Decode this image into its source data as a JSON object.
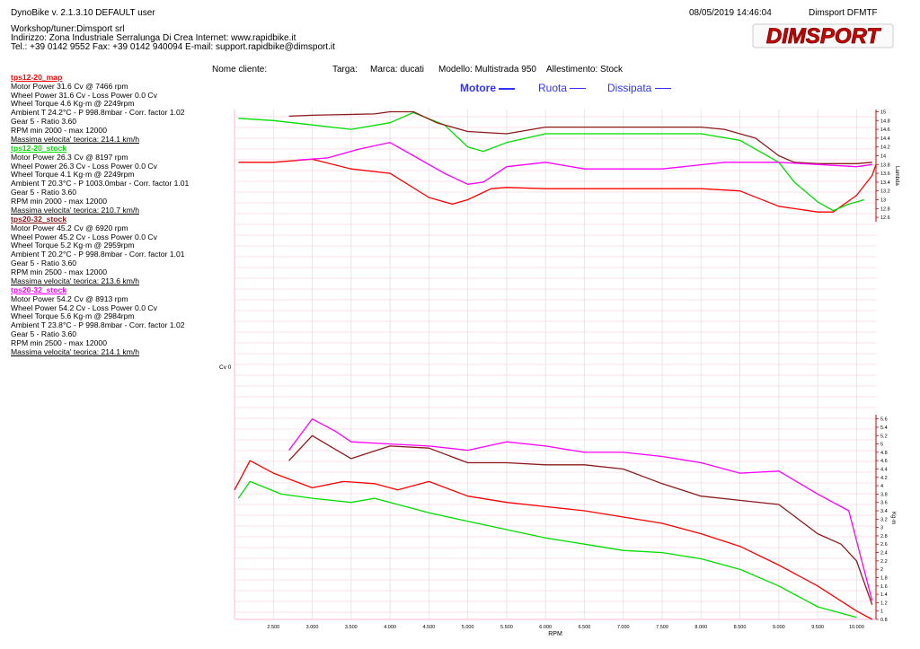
{
  "header": {
    "app_version": "DynoBike v. 2.1.3.10   DEFAULT user",
    "datetime": "08/05/2019 14:46:04",
    "station": "Dimsport DFMTF",
    "workshop": "Workshop/tuner:Dimsport srl",
    "address": "Indirizzo: Zona Industriale Serralunga Di Crea Internet: www.rapidbike.it",
    "phone": "Tel.: +39 0142 9552 Fax: +39 0142 940094 E-mail: support.rapidbike@dimsport.it",
    "logo_text": "DIMSPORT"
  },
  "runs": [
    {
      "title": "tps12-20_map",
      "color": "#ff0000",
      "lines": [
        "Motor Power 31.6 Cv  @ 7466 rpm",
        "Wheel Power 31.6 Cv  - Loss Power 0.0 Cv",
        "Wheel Torque 4.6 Kg·m  @ 2249rpm",
        "Ambient T 24.2°C - P 998.8mbar - Corr. factor 1.02",
        "Gear 5 - Ratio 3.60",
        "RPM min 2000 - max 12000"
      ],
      "max_speed": "Massima velocita' teorica: 214.1 km/h"
    },
    {
      "title": "tps12-20_stock",
      "color": "#00dd00",
      "lines": [
        "Motor Power 26.3 Cv  @ 8197 rpm",
        "Wheel Power 26.3 Cv  - Loss Power 0.0 Cv",
        "Wheel Torque 4.1 Kg·m  @ 2249rpm",
        "Ambient T 20.3°C - P 1003.0mbar - Corr. factor 1.01",
        "Gear 5 - Ratio 3.60",
        "RPM min 2000 - max 12000"
      ],
      "max_speed": "Massima velocita' teorica: 210.7 km/h"
    },
    {
      "title": "tps20-32_stock",
      "color": "#8b1a1a",
      "lines": [
        "Motor Power 45.2 Cv  @ 6920 rpm",
        "Wheel Power 45.2 Cv  - Loss Power 0.0 Cv",
        "Wheel Torque 5.2 Kg·m  @ 2959rpm",
        "Ambient T 20.2°C - P 998.8mbar - Corr. factor 1.01",
        "Gear 5 - Ratio 3.60",
        "RPM min 2500 - max 12000"
      ],
      "max_speed": "Massima velocita' teorica: 213.6 km/h"
    },
    {
      "title": "tps20-32_stock",
      "color": "#ff00ff",
      "lines": [
        "Motor Power 54.2 Cv  @ 8913 rpm",
        "Wheel Power 54.2 Cv  - Loss Power 0.0 Cv",
        "Wheel Torque 5.6 Kg·m  @ 2984rpm",
        "Ambient T 23.8°C - P 998.8mbar - Corr. factor 1.02",
        "Gear 5 - Ratio 3.60",
        "RPM min 2500 - max 12000"
      ],
      "max_speed": "Massima velocita' teorica: 214.1 km/h"
    }
  ],
  "meta": {
    "cliente": "Nome cliente:",
    "targa": "Targa:",
    "marca": "Marca: ducati",
    "modello": "Modello: Multistrada 950",
    "allestimento": "Allestimento: Stock"
  },
  "legend": {
    "motore": "Motore",
    "ruota": "Ruota",
    "dissipata": "Dissipata",
    "color": "#3333ff"
  },
  "chart_data": {
    "type": "line",
    "xlabel": "RPM",
    "x_range": [
      2000,
      10250
    ],
    "x_ticks": [
      "2.500",
      "3.000",
      "3.500",
      "4.000",
      "4.500",
      "5.000",
      "5.500",
      "6.000",
      "6.500",
      "7.000",
      "7.500",
      "8.000",
      "8.500",
      "9.000",
      "9.500",
      "10.000"
    ],
    "power_axis": {
      "label": "Cv",
      "ticks": [
        "0"
      ]
    },
    "lambda_axis": {
      "label": "Lambda",
      "range": [
        12.5,
        15.05
      ],
      "ticks": [
        "12.6",
        "12.8",
        "13",
        "13.2",
        "13.4",
        "13.6",
        "13.8",
        "14",
        "14.2",
        "14.4",
        "14.6",
        "14.8",
        "15"
      ]
    },
    "torque_axis": {
      "label": "Kg·m",
      "range": [
        0.8,
        5.7
      ],
      "ticks": [
        "0.8",
        "1",
        "1.2",
        "1.4",
        "1.6",
        "1.8",
        "2",
        "2.2",
        "2.4",
        "2.6",
        "2.8",
        "3",
        "3.2",
        "3.4",
        "3.6",
        "3.8",
        "4",
        "4.2",
        "4.4",
        "4.6",
        "4.8",
        "5",
        "5.2",
        "5.4",
        "5.6"
      ]
    },
    "lambda_series": [
      {
        "name": "tps12-20_map",
        "color": "#ff0000",
        "points": [
          [
            2050,
            13.85
          ],
          [
            2500,
            13.85
          ],
          [
            3000,
            13.92
          ],
          [
            3500,
            13.7
          ],
          [
            4000,
            13.6
          ],
          [
            4500,
            13.05
          ],
          [
            4800,
            12.9
          ],
          [
            5000,
            13.0
          ],
          [
            5300,
            13.25
          ],
          [
            5500,
            13.28
          ],
          [
            6000,
            13.25
          ],
          [
            7000,
            13.25
          ],
          [
            8000,
            13.25
          ],
          [
            8500,
            13.2
          ],
          [
            9000,
            12.85
          ],
          [
            9500,
            12.72
          ],
          [
            9700,
            12.72
          ],
          [
            10000,
            13.1
          ],
          [
            10200,
            13.55
          ],
          [
            10250,
            13.8
          ]
        ]
      },
      {
        "name": "tps12-20_stock",
        "color": "#00dd00",
        "points": [
          [
            2050,
            14.85
          ],
          [
            2500,
            14.8
          ],
          [
            3000,
            14.7
          ],
          [
            3500,
            14.6
          ],
          [
            4000,
            14.75
          ],
          [
            4300,
            14.98
          ],
          [
            4700,
            14.7
          ],
          [
            5000,
            14.2
          ],
          [
            5200,
            14.1
          ],
          [
            5500,
            14.3
          ],
          [
            6000,
            14.5
          ],
          [
            7000,
            14.5
          ],
          [
            8000,
            14.5
          ],
          [
            8500,
            14.35
          ],
          [
            9000,
            13.85
          ],
          [
            9200,
            13.4
          ],
          [
            9500,
            12.95
          ],
          [
            9700,
            12.75
          ],
          [
            9900,
            12.9
          ],
          [
            10100,
            13.0
          ]
        ]
      },
      {
        "name": "tps20-32_stock",
        "color": "#8b1a1a",
        "points": [
          [
            2700,
            14.9
          ],
          [
            3000,
            14.92
          ],
          [
            3800,
            14.95
          ],
          [
            4000,
            15.0
          ],
          [
            4300,
            15.0
          ],
          [
            4600,
            14.75
          ],
          [
            5000,
            14.55
          ],
          [
            5500,
            14.5
          ],
          [
            6000,
            14.65
          ],
          [
            7000,
            14.65
          ],
          [
            8000,
            14.65
          ],
          [
            8300,
            14.6
          ],
          [
            8700,
            14.4
          ],
          [
            9000,
            14.0
          ],
          [
            9200,
            13.85
          ],
          [
            9500,
            13.82
          ],
          [
            10000,
            13.82
          ],
          [
            10200,
            13.85
          ]
        ]
      },
      {
        "name": "tps20-32_stock",
        "color": "#ff00ff",
        "points": [
          [
            2800,
            13.9
          ],
          [
            3200,
            13.95
          ],
          [
            3600,
            14.15
          ],
          [
            4000,
            14.3
          ],
          [
            4300,
            14.0
          ],
          [
            4700,
            13.6
          ],
          [
            5000,
            13.35
          ],
          [
            5200,
            13.4
          ],
          [
            5500,
            13.75
          ],
          [
            6000,
            13.85
          ],
          [
            6500,
            13.7
          ],
          [
            7500,
            13.7
          ],
          [
            8300,
            13.85
          ],
          [
            9000,
            13.85
          ],
          [
            10000,
            13.75
          ],
          [
            10200,
            13.8
          ]
        ]
      }
    ],
    "torque_series": [
      {
        "name": "tps12-20_map",
        "color": "#ff0000",
        "points": [
          [
            2000,
            3.9
          ],
          [
            2200,
            4.6
          ],
          [
            2500,
            4.3
          ],
          [
            3000,
            3.95
          ],
          [
            3400,
            4.1
          ],
          [
            3800,
            4.05
          ],
          [
            4100,
            3.9
          ],
          [
            4500,
            4.1
          ],
          [
            5000,
            3.75
          ],
          [
            5500,
            3.6
          ],
          [
            6000,
            3.5
          ],
          [
            6500,
            3.4
          ],
          [
            7000,
            3.25
          ],
          [
            7500,
            3.1
          ],
          [
            8000,
            2.85
          ],
          [
            8500,
            2.55
          ],
          [
            9000,
            2.1
          ],
          [
            9500,
            1.6
          ],
          [
            10000,
            1.0
          ],
          [
            10200,
            0.8
          ]
        ]
      },
      {
        "name": "tps12-20_stock",
        "color": "#00dd00",
        "points": [
          [
            2050,
            3.7
          ],
          [
            2200,
            4.1
          ],
          [
            2600,
            3.8
          ],
          [
            3000,
            3.7
          ],
          [
            3500,
            3.6
          ],
          [
            3800,
            3.7
          ],
          [
            4500,
            3.35
          ],
          [
            5000,
            3.15
          ],
          [
            5500,
            2.95
          ],
          [
            6000,
            2.75
          ],
          [
            6500,
            2.6
          ],
          [
            7000,
            2.45
          ],
          [
            7500,
            2.4
          ],
          [
            8000,
            2.25
          ],
          [
            8500,
            2.0
          ],
          [
            9000,
            1.6
          ],
          [
            9500,
            1.1
          ],
          [
            10000,
            0.85
          ]
        ]
      },
      {
        "name": "tps20-32_stock",
        "color": "#8b1a1a",
        "points": [
          [
            2700,
            4.6
          ],
          [
            3000,
            5.2
          ],
          [
            3500,
            4.65
          ],
          [
            4000,
            4.95
          ],
          [
            4500,
            4.9
          ],
          [
            5000,
            4.55
          ],
          [
            5500,
            4.55
          ],
          [
            6000,
            4.5
          ],
          [
            6500,
            4.5
          ],
          [
            7000,
            4.4
          ],
          [
            7500,
            4.05
          ],
          [
            8000,
            3.75
          ],
          [
            8500,
            3.65
          ],
          [
            9000,
            3.55
          ],
          [
            9500,
            2.85
          ],
          [
            9800,
            2.6
          ],
          [
            10000,
            2.2
          ],
          [
            10200,
            1.15
          ]
        ]
      },
      {
        "name": "tps20-32_stock",
        "color": "#ff00ff",
        "points": [
          [
            2700,
            4.85
          ],
          [
            3000,
            5.6
          ],
          [
            3300,
            5.3
          ],
          [
            3500,
            5.05
          ],
          [
            4000,
            5.0
          ],
          [
            4500,
            4.95
          ],
          [
            5000,
            4.85
          ],
          [
            5500,
            5.05
          ],
          [
            6000,
            4.95
          ],
          [
            6500,
            4.8
          ],
          [
            7000,
            4.8
          ],
          [
            7500,
            4.7
          ],
          [
            8000,
            4.55
          ],
          [
            8500,
            4.3
          ],
          [
            9000,
            4.35
          ],
          [
            9500,
            3.8
          ],
          [
            9900,
            3.4
          ],
          [
            10200,
            1.25
          ]
        ]
      }
    ]
  }
}
